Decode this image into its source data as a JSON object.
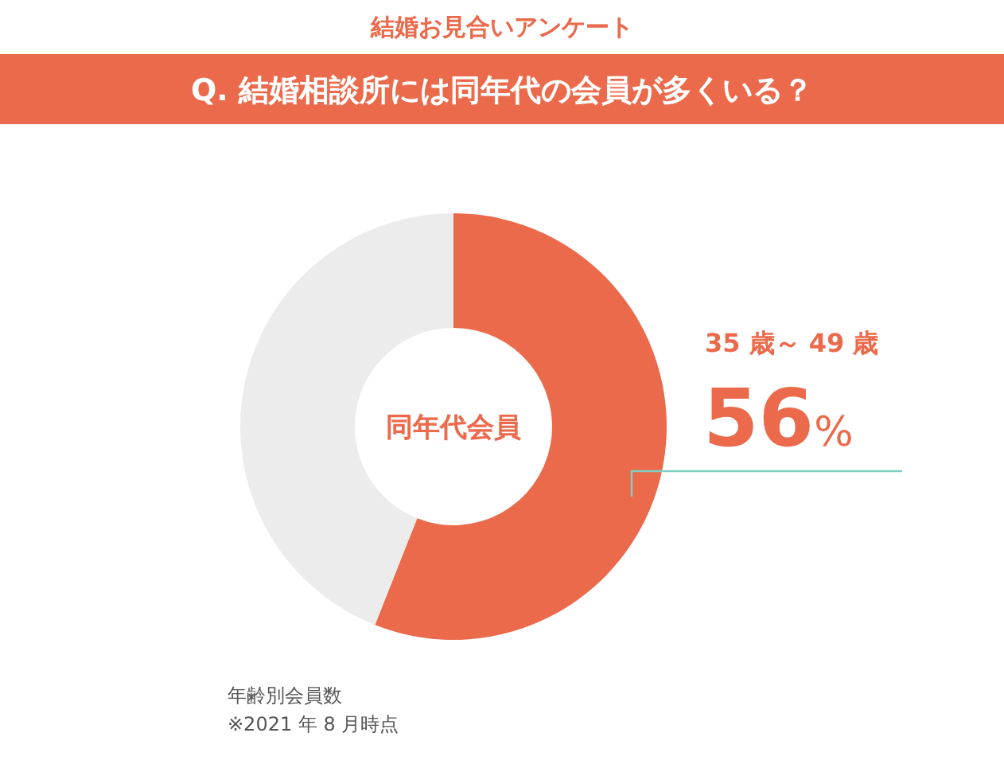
{
  "chart_data": {
    "type": "donut",
    "title": "結婚お見合いアンケート",
    "subtitle": "Q. 結婚相談所には同年代の会員が多くいる？",
    "categories": [
      "同年代会員",
      null
    ],
    "values": [
      56,
      44
    ],
    "colors": [
      "#eb6a4b",
      "#ececec"
    ],
    "value_labels": [
      "56%",
      null
    ],
    "annotations": [
      "35 歳～ 49 歳",
      "年齢別会員数",
      "※2021 年 8 月時点"
    ]
  }
}
